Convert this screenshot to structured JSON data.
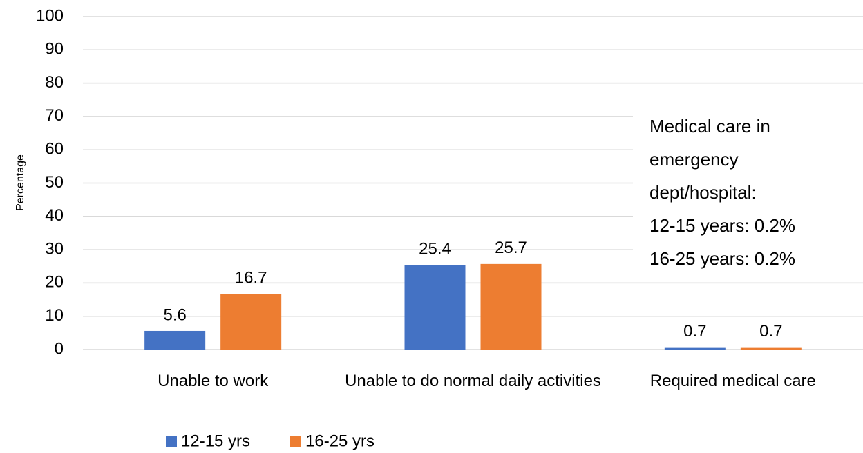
{
  "chart_data": {
    "type": "bar",
    "y_label": "Percentage",
    "categories": [
      "Unable to work",
      "Unable to do normal daily activities",
      "Required medical care"
    ],
    "series": [
      {
        "name": "12-15 yrs",
        "color": "#4472c4",
        "values": [
          5.6,
          25.4,
          0.7
        ]
      },
      {
        "name": "16-25 yrs",
        "color": "#ed7d31",
        "values": [
          16.7,
          25.7,
          0.7
        ]
      }
    ],
    "ylim": [
      0,
      100
    ],
    "yticks": [
      0,
      10,
      20,
      30,
      40,
      50,
      60,
      70,
      80,
      90,
      100
    ],
    "grid": true,
    "annotation": [
      "Medical care in",
      "emergency",
      "dept/hospital:",
      "12-15 years: 0.2%",
      "16-25 years: 0.2%"
    ],
    "legend": "bottom"
  }
}
